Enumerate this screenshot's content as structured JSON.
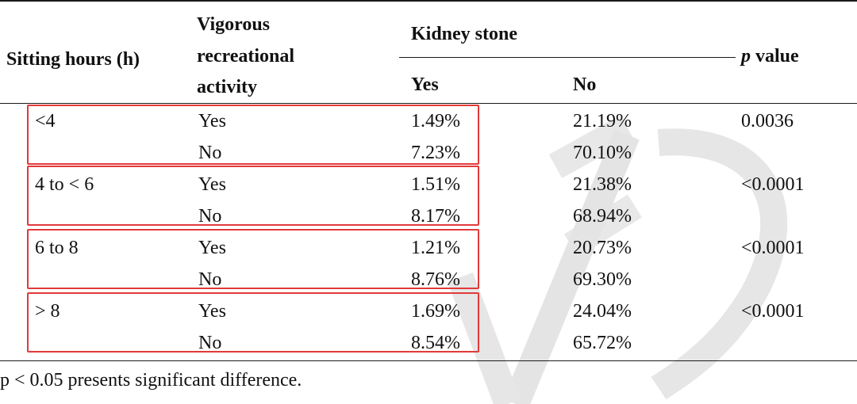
{
  "table": {
    "headers": {
      "sitting": "Sitting hours (h)",
      "activity_line1": "Vigorous",
      "activity_line2": "recreational",
      "activity_line3": "activity",
      "kidney_stone": "Kidney stone",
      "yes": "Yes",
      "no": "No",
      "p_italic": "p",
      "p_rest": " value"
    },
    "rows": [
      {
        "sitting": "<4",
        "activity": "Yes",
        "yes": "1.49%",
        "no": "21.19%",
        "p": "0.0036"
      },
      {
        "sitting": "",
        "activity": "No",
        "yes": "7.23%",
        "no": "70.10%",
        "p": ""
      },
      {
        "sitting": "4 to < 6",
        "activity": "Yes",
        "yes": "1.51%",
        "no": "21.38%",
        "p": "<0.0001"
      },
      {
        "sitting": "",
        "activity": "No",
        "yes": "8.17%",
        "no": "68.94%",
        "p": ""
      },
      {
        "sitting": "6 to 8",
        "activity": "Yes",
        "yes": "1.21%",
        "no": "20.73%",
        "p": "<0.0001"
      },
      {
        "sitting": "",
        "activity": "No",
        "yes": "8.76%",
        "no": "69.30%",
        "p": ""
      },
      {
        "sitting": "> 8",
        "activity": "Yes",
        "yes": "1.69%",
        "no": "24.04%",
        "p": "<0.0001"
      },
      {
        "sitting": "",
        "activity": "No",
        "yes": "8.54%",
        "no": "65.72%",
        "p": ""
      }
    ],
    "footnote": "p < 0.05 presents significant difference."
  },
  "colors": {
    "highlight_box": "#e23a3a",
    "watermark": "#e6e6e6"
  }
}
